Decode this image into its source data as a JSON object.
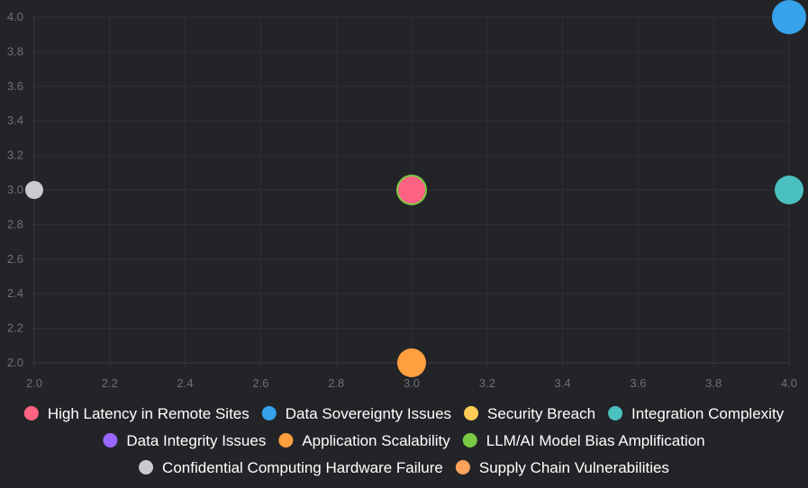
{
  "chart_data": {
    "type": "scatter",
    "title": "",
    "xlabel": "",
    "ylabel": "",
    "xlim": [
      2.0,
      4.0
    ],
    "ylim": [
      2.0,
      4.0
    ],
    "x_ticks": [
      "2.0",
      "2.2",
      "2.4",
      "2.6",
      "2.8",
      "3.0",
      "3.2",
      "3.4",
      "3.6",
      "3.8",
      "4.0"
    ],
    "y_ticks": [
      "2.0",
      "2.2",
      "2.4",
      "2.6",
      "2.8",
      "3.0",
      "3.2",
      "3.4",
      "3.6",
      "3.8",
      "4.0"
    ],
    "grid": true,
    "legend_position": "bottom",
    "series": [
      {
        "name": "High Latency in Remote Sites",
        "color": "#ff6384",
        "points": [
          {
            "x": 3.0,
            "y": 3.0,
            "r": "medium"
          }
        ]
      },
      {
        "name": "Data Sovereignty Issues",
        "color": "#36a2eb",
        "points": [
          {
            "x": 4.0,
            "y": 4.0,
            "r": "large"
          }
        ]
      },
      {
        "name": "Security Breach",
        "color": "#ffcd56",
        "points": []
      },
      {
        "name": "Integration Complexity",
        "color": "#4bc0c0",
        "points": [
          {
            "x": 4.0,
            "y": 3.0,
            "r": "medium"
          }
        ]
      },
      {
        "name": "Data Integrity Issues",
        "color": "#9966ff",
        "points": []
      },
      {
        "name": "Application Scalability",
        "color": "#ff9f40",
        "points": [
          {
            "x": 3.0,
            "y": 2.0,
            "r": "medium"
          }
        ]
      },
      {
        "name": "LLM/AI Model Bias Amplification",
        "color": "#7ac943",
        "points": [
          {
            "x": 3.0,
            "y": 3.0,
            "r": "medium"
          }
        ]
      },
      {
        "name": "Confidential Computing Hardware Failure",
        "color": "#c9cbcf",
        "points": [
          {
            "x": 2.0,
            "y": 3.0,
            "r": "small"
          }
        ]
      },
      {
        "name": "Supply Chain Vulnerabilities",
        "color": "#ffa35c",
        "points": []
      }
    ]
  }
}
